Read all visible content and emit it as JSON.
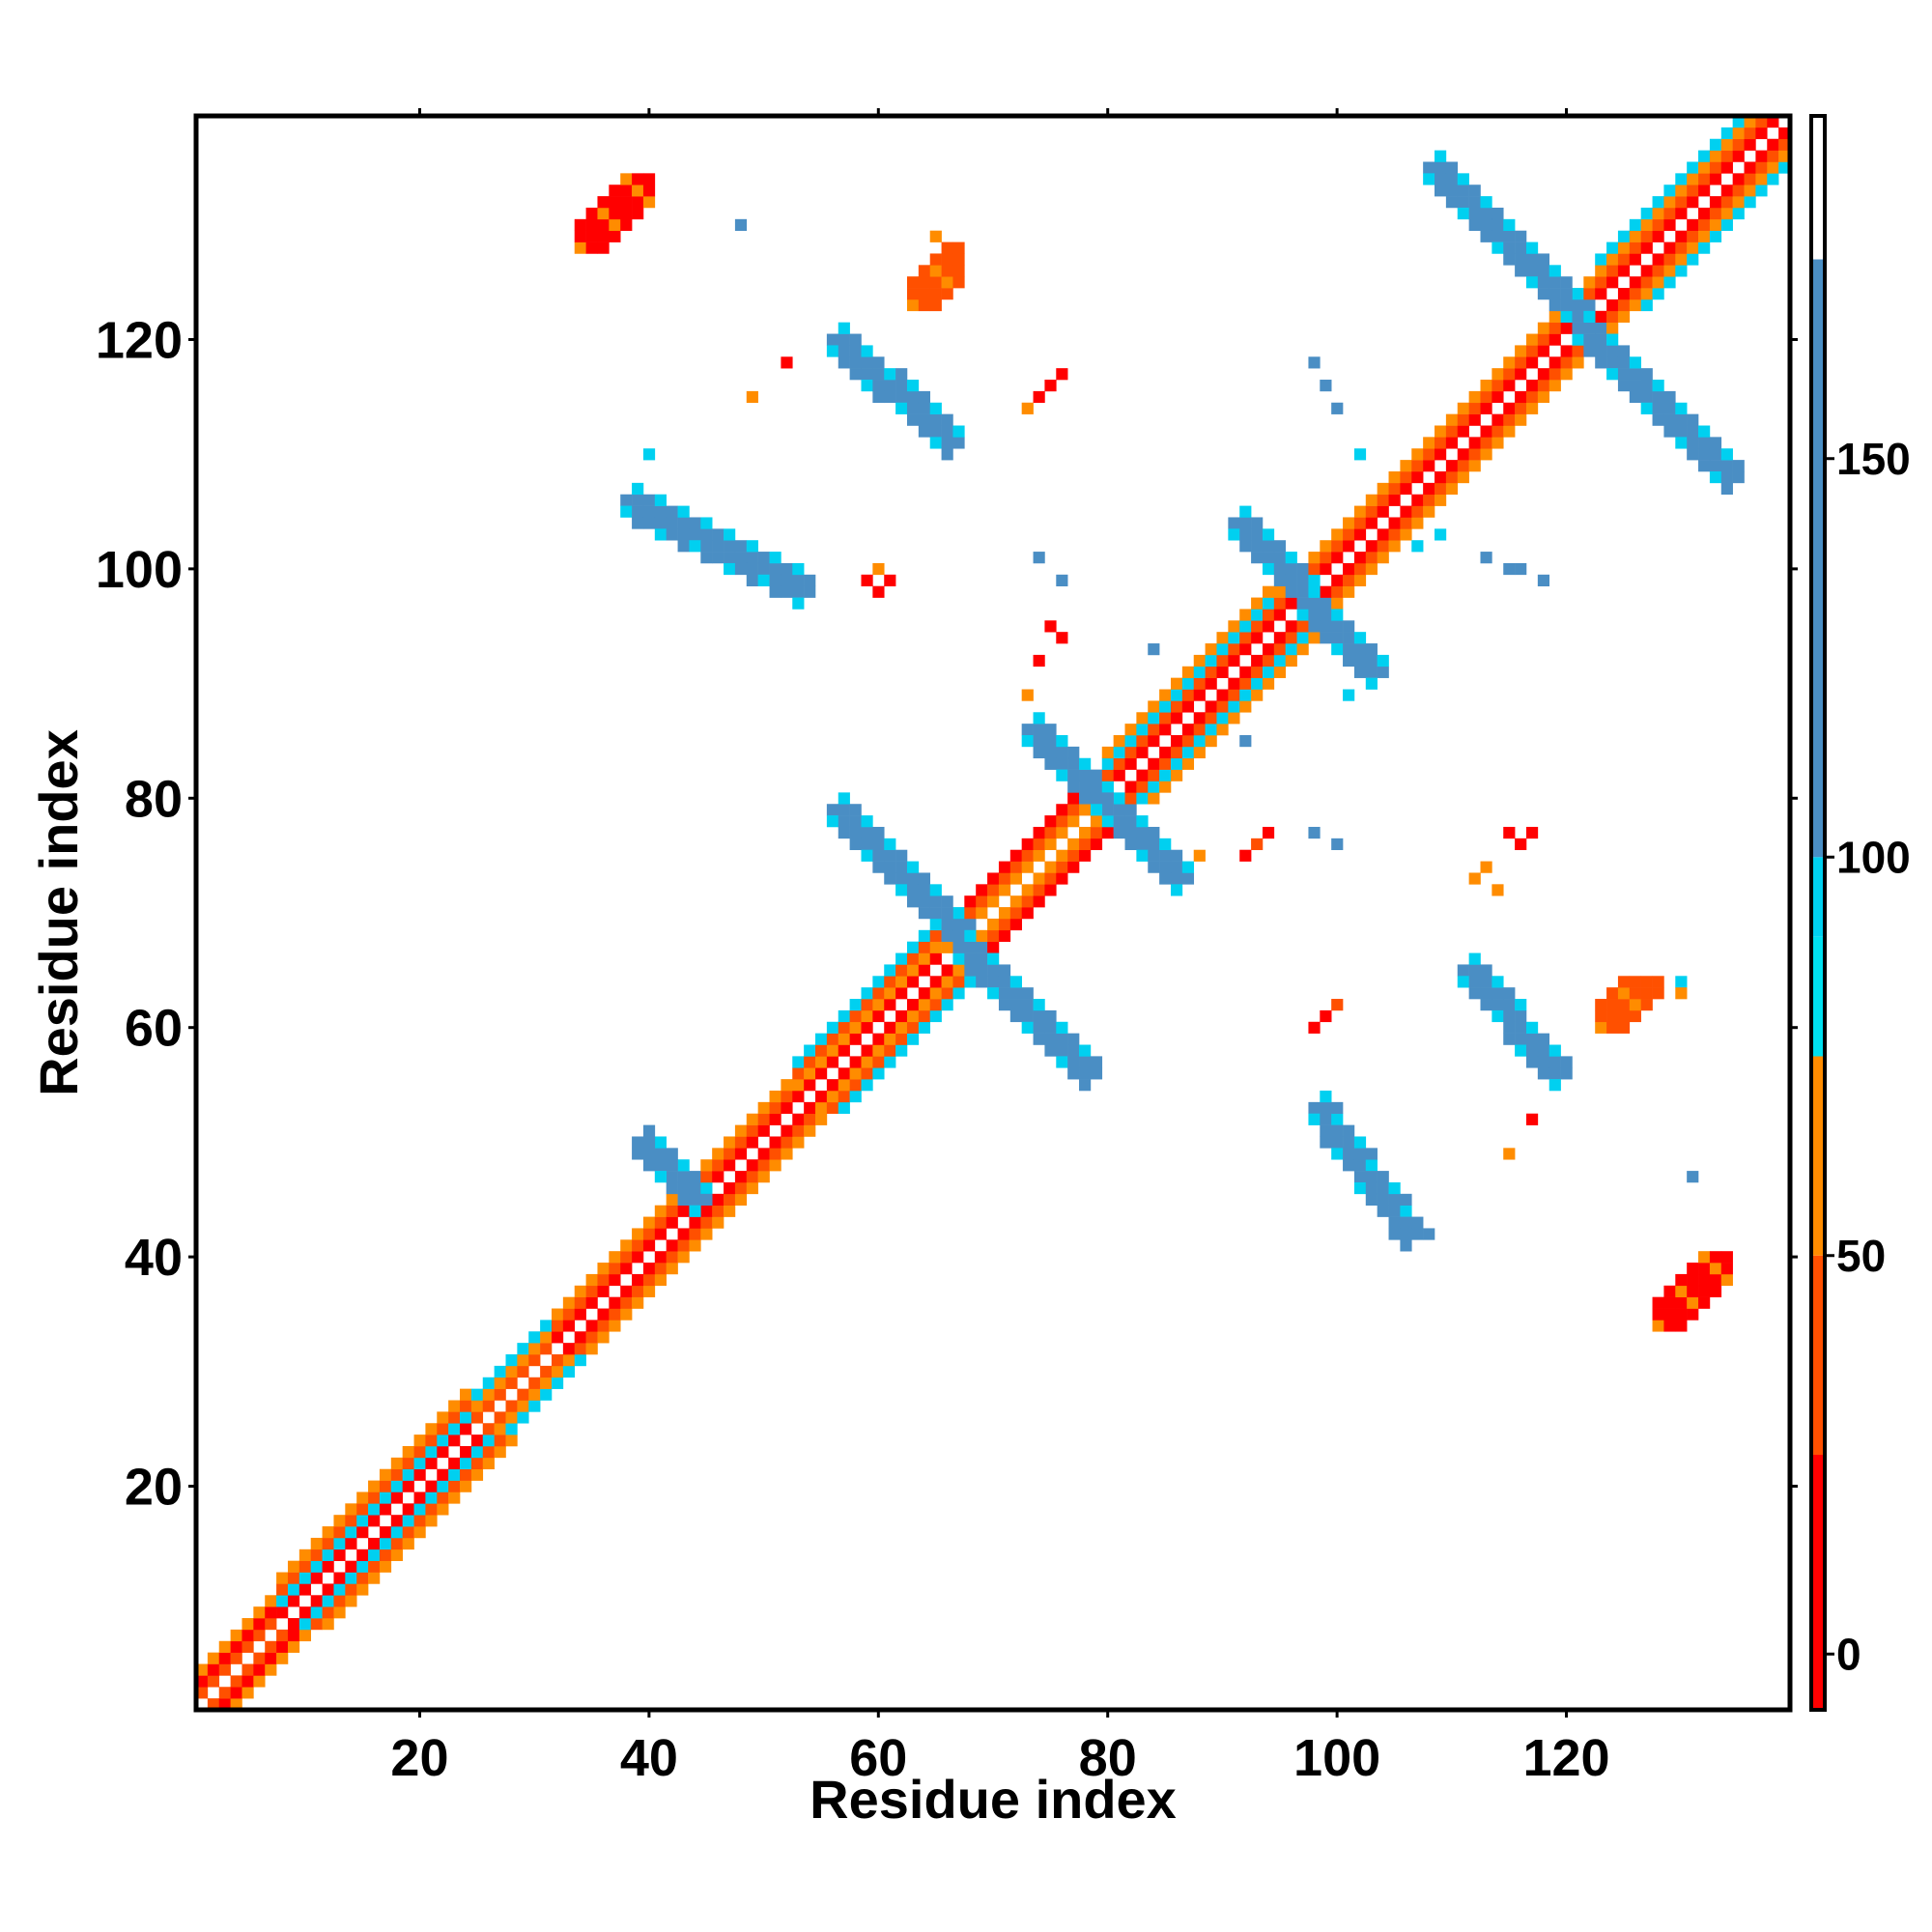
{
  "chart_data": {
    "type": "heatmap",
    "title": "",
    "xlabel": "Residue index",
    "ylabel": "Residue index",
    "xlim": [
      0.5,
      139.5
    ],
    "ylim": [
      0.5,
      139.5
    ],
    "x_ticks": [
      20,
      40,
      60,
      80,
      100,
      120
    ],
    "y_ticks": [
      20,
      40,
      60,
      80,
      100,
      120
    ],
    "grid": false,
    "colorbar": {
      "ticks": [
        0,
        50,
        100,
        150
      ],
      "range": [
        -7,
        193
      ],
      "bands": [
        {
          "from": -7,
          "to": 25,
          "color": "#ff0000"
        },
        {
          "from": 25,
          "to": 50,
          "color": "#ff5000"
        },
        {
          "from": 50,
          "to": 75,
          "color": "#ff8c00"
        },
        {
          "from": 75,
          "to": 90,
          "color": "#00e0f0"
        },
        {
          "from": 90,
          "to": 100,
          "color": "#00d0f0"
        },
        {
          "from": 100,
          "to": 175,
          "color": "#4a8ec4"
        },
        {
          "from": 175,
          "to": 193,
          "color": "#ffffff"
        }
      ]
    },
    "value_categories": {
      "R": 10,
      "O": 40,
      "A": 60,
      "C": 90,
      "B": 140
    },
    "colors": {
      "R": "#ff0000",
      "O": "#ff5000",
      "A": "#ff8c00",
      "C": "#00d0f0",
      "B": "#4a8ec4"
    },
    "diagonal_segments": [
      {
        "from": 1,
        "to": 7,
        "pattern": [
          "O",
          "R",
          "A"
        ]
      },
      {
        "from": 8,
        "to": 24,
        "pattern": [
          "R",
          "C",
          "O",
          "A"
        ]
      },
      {
        "from": 25,
        "to": 31,
        "pattern": [
          "O",
          "A",
          "C"
        ]
      },
      {
        "from": 32,
        "to": 41,
        "pattern": [
          "R",
          "O",
          "A"
        ]
      },
      {
        "from": 42,
        "to": 52,
        "pattern": [
          "R",
          "O",
          "A"
        ]
      },
      {
        "from": 53,
        "to": 65,
        "pattern": [
          "R",
          "A",
          "O",
          "C"
        ]
      },
      {
        "from": 66,
        "to": 79,
        "pattern": [
          "A",
          "O",
          "R"
        ]
      },
      {
        "from": 80,
        "to": 94,
        "pattern": [
          "R",
          "O",
          "C",
          "A"
        ]
      },
      {
        "from": 95,
        "to": 107,
        "pattern": [
          "R",
          "O",
          "A"
        ]
      },
      {
        "from": 108,
        "to": 122,
        "pattern": [
          "R",
          "O",
          "A"
        ]
      },
      {
        "from": 123,
        "to": 139,
        "pattern": [
          "R",
          "O",
          "A",
          "C"
        ]
      }
    ],
    "sheet_contacts": [
      {
        "x0": 44,
        "y0": 45,
        "x1": 39,
        "y1": 50,
        "v": "B"
      },
      {
        "x0": 38,
        "y0": 106,
        "x1": 53,
        "y1": 98,
        "v": "B"
      },
      {
        "x0": 56,
        "y0": 120,
        "x1": 66,
        "y1": 111,
        "v": "B"
      },
      {
        "x0": 56,
        "y0": 79,
        "x1": 67,
        "y1": 68,
        "v": "B"
      },
      {
        "x0": 67,
        "y0": 67,
        "x1": 78,
        "y1": 56,
        "v": "B"
      },
      {
        "x0": 73,
        "y0": 86,
        "x1": 79,
        "y1": 80,
        "v": "B"
      },
      {
        "x0": 80,
        "y0": 79,
        "x1": 86,
        "y1": 73,
        "v": "B"
      },
      {
        "x0": 91,
        "y0": 104,
        "x1": 97,
        "y1": 98,
        "v": "B"
      },
      {
        "x0": 97,
        "y0": 97,
        "x1": 103,
        "y1": 91,
        "v": "B"
      },
      {
        "x0": 98,
        "y0": 53,
        "x1": 106,
        "y1": 42,
        "v": "B"
      },
      {
        "x0": 108,
        "y0": 135,
        "x1": 121,
        "y1": 122,
        "v": "B"
      },
      {
        "x0": 121,
        "y0": 121,
        "x1": 134,
        "y1": 108,
        "v": "B"
      },
      {
        "x0": 111,
        "y0": 65,
        "x1": 119,
        "y1": 56,
        "v": "B"
      }
    ],
    "patches": [
      {
        "x0": 34,
        "y0": 128,
        "x1": 40,
        "y1": 134,
        "v": "R"
      },
      {
        "x0": 128,
        "y0": 34,
        "x1": 134,
        "y1": 40,
        "v": "R"
      },
      {
        "x0": 63,
        "y0": 123,
        "x1": 67,
        "y1": 128,
        "v": "O"
      },
      {
        "x0": 123,
        "y0": 60,
        "x1": 128,
        "y1": 64,
        "v": "O"
      }
    ],
    "points": [
      {
        "x": 48,
        "y": 130,
        "v": "B"
      },
      {
        "x": 65,
        "y": 129,
        "v": "A"
      },
      {
        "x": 52,
        "y": 118,
        "v": "R"
      },
      {
        "x": 49,
        "y": 115,
        "v": "A"
      },
      {
        "x": 73,
        "y": 114,
        "v": "A"
      },
      {
        "x": 74,
        "y": 115,
        "v": "R"
      },
      {
        "x": 75,
        "y": 116,
        "v": "R"
      },
      {
        "x": 76,
        "y": 117,
        "v": "R"
      },
      {
        "x": 59,
        "y": 99,
        "v": "R"
      },
      {
        "x": 60,
        "y": 98,
        "v": "R"
      },
      {
        "x": 61,
        "y": 99,
        "v": "R"
      },
      {
        "x": 60,
        "y": 100,
        "v": "A"
      },
      {
        "x": 75,
        "y": 95,
        "v": "R"
      },
      {
        "x": 76,
        "y": 94,
        "v": "R"
      },
      {
        "x": 74,
        "y": 92,
        "v": "R"
      },
      {
        "x": 73,
        "y": 89,
        "v": "A"
      },
      {
        "x": 74,
        "y": 101,
        "v": "B"
      },
      {
        "x": 76,
        "y": 99,
        "v": "B"
      },
      {
        "x": 98,
        "y": 118,
        "v": "B"
      },
      {
        "x": 99,
        "y": 116,
        "v": "B"
      },
      {
        "x": 100,
        "y": 114,
        "v": "B"
      },
      {
        "x": 102,
        "y": 110,
        "v": "C"
      },
      {
        "x": 40,
        "y": 110,
        "v": "C"
      },
      {
        "x": 107,
        "y": 102,
        "v": "C"
      },
      {
        "x": 113,
        "y": 101,
        "v": "B"
      },
      {
        "x": 115,
        "y": 100,
        "v": "B"
      },
      {
        "x": 116,
        "y": 100,
        "v": "B"
      },
      {
        "x": 118,
        "y": 99,
        "v": "B"
      },
      {
        "x": 88,
        "y": 75,
        "v": "A"
      },
      {
        "x": 92,
        "y": 75,
        "v": "R"
      },
      {
        "x": 93,
        "y": 76,
        "v": "O"
      },
      {
        "x": 94,
        "y": 77,
        "v": "R"
      },
      {
        "x": 98,
        "y": 77,
        "v": "B"
      },
      {
        "x": 100,
        "y": 76,
        "v": "B"
      },
      {
        "x": 115,
        "y": 77,
        "v": "R"
      },
      {
        "x": 116,
        "y": 76,
        "v": "R"
      },
      {
        "x": 117,
        "y": 77,
        "v": "R"
      },
      {
        "x": 112,
        "y": 73,
        "v": "A"
      },
      {
        "x": 113,
        "y": 74,
        "v": "A"
      },
      {
        "x": 114,
        "y": 72,
        "v": "A"
      },
      {
        "x": 98,
        "y": 60,
        "v": "R"
      },
      {
        "x": 99,
        "y": 61,
        "v": "R"
      },
      {
        "x": 100,
        "y": 62,
        "v": "O"
      },
      {
        "x": 117,
        "y": 52,
        "v": "R"
      },
      {
        "x": 115,
        "y": 49,
        "v": "A"
      },
      {
        "x": 130,
        "y": 64,
        "v": "C"
      },
      {
        "x": 130,
        "y": 63,
        "v": "A"
      },
      {
        "x": 131,
        "y": 47,
        "v": "B"
      },
      {
        "x": 108,
        "y": 42,
        "v": "B"
      },
      {
        "x": 92,
        "y": 85,
        "v": "B"
      },
      {
        "x": 84,
        "y": 93,
        "v": "B"
      },
      {
        "x": 101,
        "y": 89,
        "v": "C"
      },
      {
        "x": 109,
        "y": 103,
        "v": "C"
      }
    ]
  }
}
